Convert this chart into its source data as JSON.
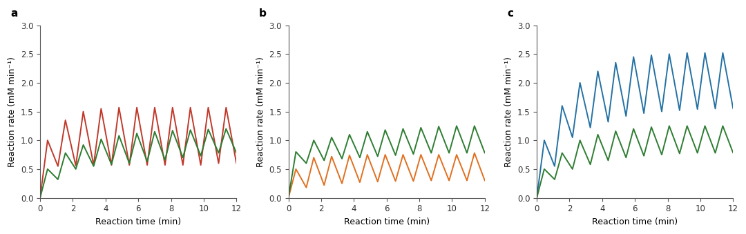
{
  "panels": [
    "a",
    "b",
    "c"
  ],
  "xlabel": "Reaction time (min)",
  "ylabel": "Reaction rate (mM min⁻¹)",
  "xlim": [
    0,
    12
  ],
  "ylim": [
    0,
    3.0
  ],
  "yticks": [
    0,
    0.5,
    1.0,
    1.5,
    2.0,
    2.5,
    3.0
  ],
  "xticks": [
    0,
    2,
    4,
    6,
    8,
    10,
    12
  ],
  "colors_a": [
    "#c0392b",
    "#2e7d32"
  ],
  "colors_b": [
    "#e07020",
    "#2e7d32"
  ],
  "colors_c": [
    "#2471a3",
    "#2e7d32"
  ],
  "bg_color": "#ffffff",
  "linewidth": 1.4,
  "panel_a": {
    "red_peaks": [
      1.0,
      1.35,
      1.5,
      1.55,
      1.57,
      1.57,
      1.57,
      1.57,
      1.57,
      1.57,
      1.57
    ],
    "red_mins": [
      0.0,
      0.55,
      0.56,
      0.57,
      0.57,
      0.57,
      0.57,
      0.57,
      0.57,
      0.57,
      0.6
    ],
    "green_peaks": [
      0.5,
      0.78,
      0.92,
      1.02,
      1.08,
      1.12,
      1.15,
      1.17,
      1.18,
      1.19,
      1.2
    ],
    "green_mins": [
      0.0,
      0.32,
      0.5,
      0.55,
      0.58,
      0.6,
      0.63,
      0.66,
      0.7,
      0.73,
      0.78
    ]
  },
  "panel_b": {
    "n_cycles": 11,
    "t_start": 0.0,
    "orange_peaks": [
      0.5,
      0.7,
      0.72,
      0.74,
      0.75,
      0.75,
      0.75,
      0.75,
      0.75,
      0.75,
      0.78
    ],
    "orange_mins": [
      0.0,
      0.18,
      0.22,
      0.25,
      0.27,
      0.28,
      0.29,
      0.29,
      0.3,
      0.3,
      0.3
    ],
    "green_peaks": [
      0.8,
      1.0,
      1.05,
      1.1,
      1.15,
      1.18,
      1.2,
      1.22,
      1.24,
      1.25,
      1.25
    ],
    "green_mins": [
      0.0,
      0.6,
      0.65,
      0.68,
      0.7,
      0.72,
      0.74,
      0.76,
      0.78,
      0.78,
      0.78
    ]
  },
  "panel_c": {
    "blue_peaks": [
      1.0,
      1.6,
      2.0,
      2.2,
      2.35,
      2.45,
      2.48,
      2.5,
      2.52,
      2.52,
      2.52
    ],
    "blue_mins": [
      0.0,
      0.55,
      1.05,
      1.22,
      1.32,
      1.42,
      1.47,
      1.5,
      1.52,
      1.54,
      1.55
    ],
    "green_peaks": [
      0.5,
      0.78,
      1.0,
      1.1,
      1.16,
      1.2,
      1.23,
      1.25,
      1.25,
      1.25,
      1.25
    ],
    "green_mins": [
      0.0,
      0.32,
      0.5,
      0.58,
      0.65,
      0.7,
      0.73,
      0.75,
      0.77,
      0.78,
      0.78
    ]
  }
}
